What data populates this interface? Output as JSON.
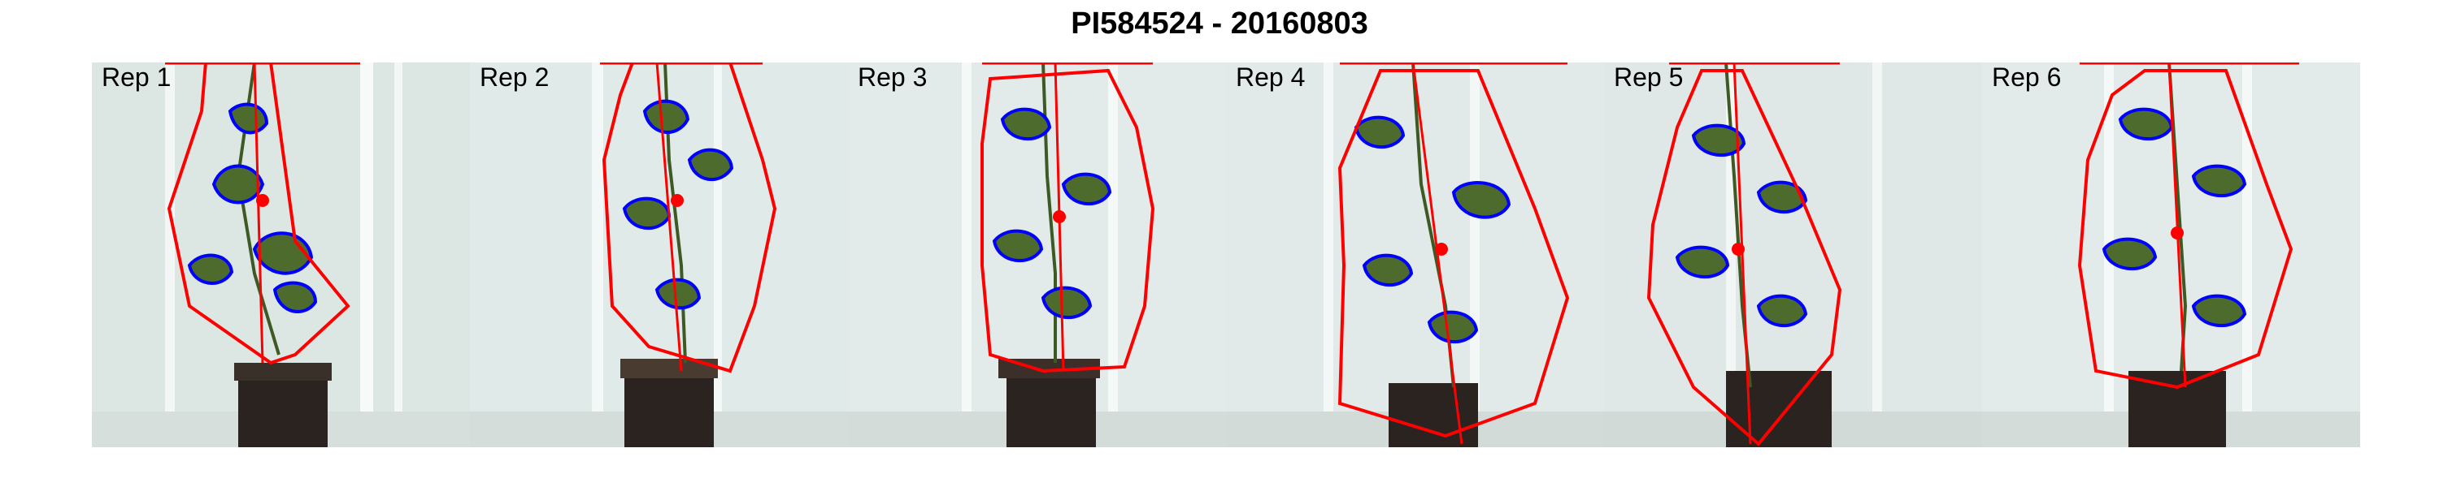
{
  "title": "PI584524 - 20160803",
  "panels": [
    {
      "label": "Rep 1"
    },
    {
      "label": "Rep 2"
    },
    {
      "label": "Rep 3"
    },
    {
      "label": "Rep 4"
    },
    {
      "label": "Rep 5"
    },
    {
      "label": "Rep 6"
    }
  ],
  "colors": {
    "hull_line": "#ff0000",
    "contour_line": "#0000ff",
    "leaf": "#4e6b2e",
    "background": "#dfe9e6",
    "stand": "#2b2320"
  }
}
